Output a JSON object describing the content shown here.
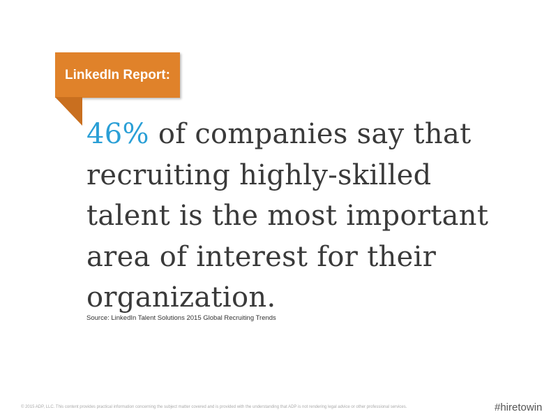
{
  "banner": {
    "label": "LinkedIn Report:",
    "color": "#e0822a"
  },
  "headline": {
    "highlight": "46%",
    "highlight_color": "#2a9fd6",
    "rest": " of companies say that recruiting highly-skilled talent is the most important area of interest for their organization."
  },
  "source": "Source: LinkedIn Talent Solutions 2015 Global Recruiting Trends",
  "footer": {
    "disclaimer": "© 2015 ADP, LLC. This content provides practical information concerning the subject matter covered and is provided with the understanding that ADP is not rendering legal advice or other professional services.",
    "hashtag": "#hiretowin"
  }
}
